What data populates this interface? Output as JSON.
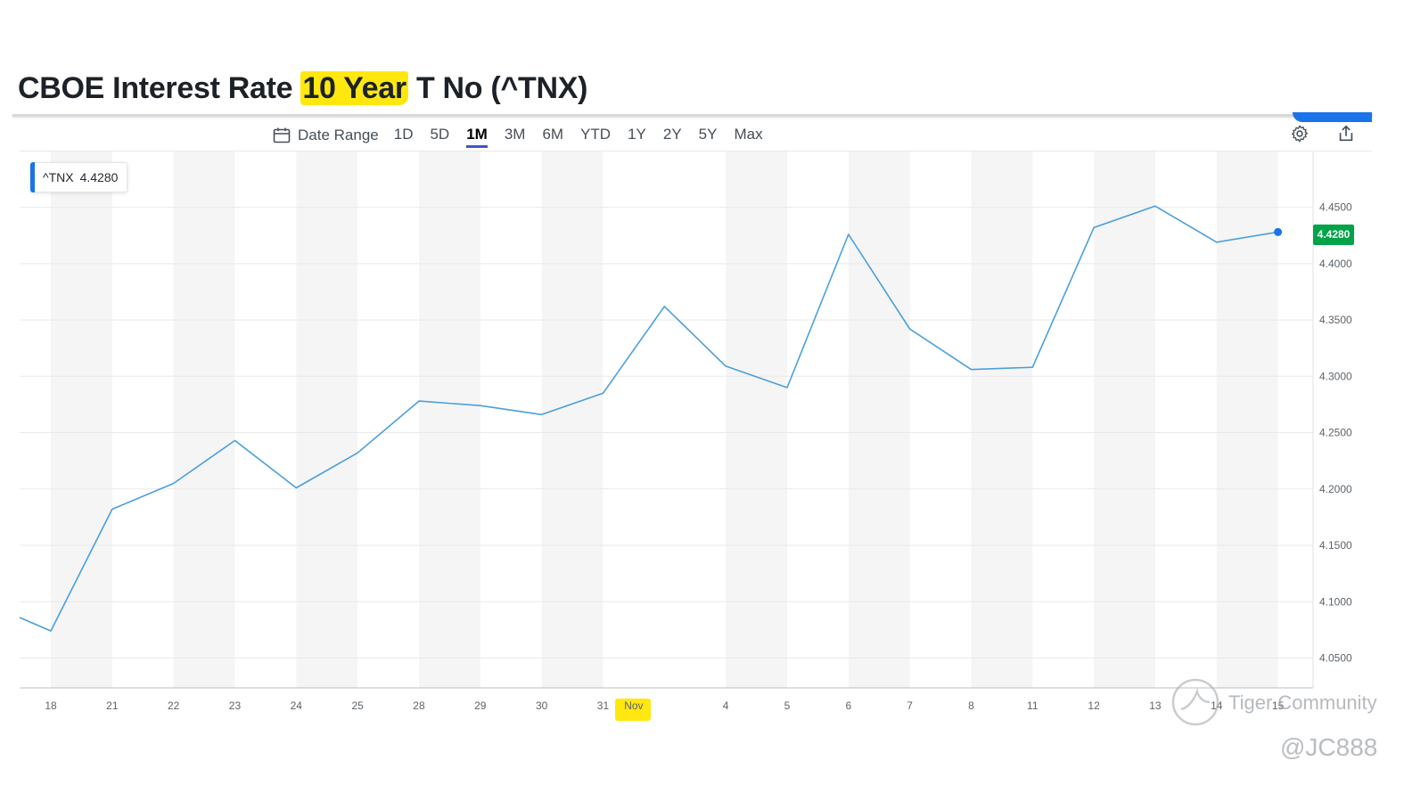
{
  "header": {
    "title_before": "CBOE Interest Rate ",
    "title_highlight": "10 Year",
    "title_after": " T No (^TNX)"
  },
  "toolbar": {
    "date_range_label": "Date Range",
    "ranges": [
      "1D",
      "5D",
      "1M",
      "3M",
      "6M",
      "YTD",
      "1Y",
      "2Y",
      "5Y",
      "Max"
    ],
    "active_range": "1M",
    "icons": [
      "calendar-icon",
      "settings-icon",
      "share-icon"
    ]
  },
  "legend": {
    "symbol": "^TNX",
    "value": "4.4280"
  },
  "price_badge": "4.4280",
  "colors": {
    "line": "#4a9fdc",
    "highlight": "#ffe70f",
    "price_badge": "#00a348",
    "accent": "#3e55cf",
    "weekend_band": "#f5f5f5"
  },
  "chart_data": {
    "type": "line",
    "categories": [
      "",
      "18",
      "21",
      "22",
      "23",
      "24",
      "25",
      "28",
      "29",
      "30",
      "31",
      "Nov",
      "4",
      "5",
      "6",
      "7",
      "8",
      "11",
      "12",
      "13",
      "14",
      "15"
    ],
    "x_tick_labels": [
      "18",
      "21",
      "22",
      "23",
      "24",
      "25",
      "28",
      "29",
      "30",
      "Nov",
      "4",
      "5",
      "6",
      "7",
      "8",
      "11",
      "12",
      "13",
      "14",
      "15"
    ],
    "highlighted_tick": "Nov",
    "series": [
      {
        "name": "^TNX",
        "values": [
          4.086,
          4.074,
          4.182,
          4.205,
          4.243,
          4.201,
          4.232,
          4.278,
          4.274,
          4.266,
          4.285,
          4.362,
          4.309,
          4.29,
          4.426,
          4.342,
          4.306,
          4.308,
          4.432,
          4.451,
          4.419,
          4.428
        ]
      }
    ],
    "y_ticks": [
      "4.0500",
      "4.1000",
      "4.1500",
      "4.2000",
      "4.2500",
      "4.3000",
      "4.3500",
      "4.4000",
      "4.4500"
    ],
    "ylim": [
      4.0235,
      4.4995
    ],
    "last_value": 4.428,
    "grid": true
  },
  "watermark": {
    "brand": "Tiger Community",
    "handle": "@JC888"
  }
}
